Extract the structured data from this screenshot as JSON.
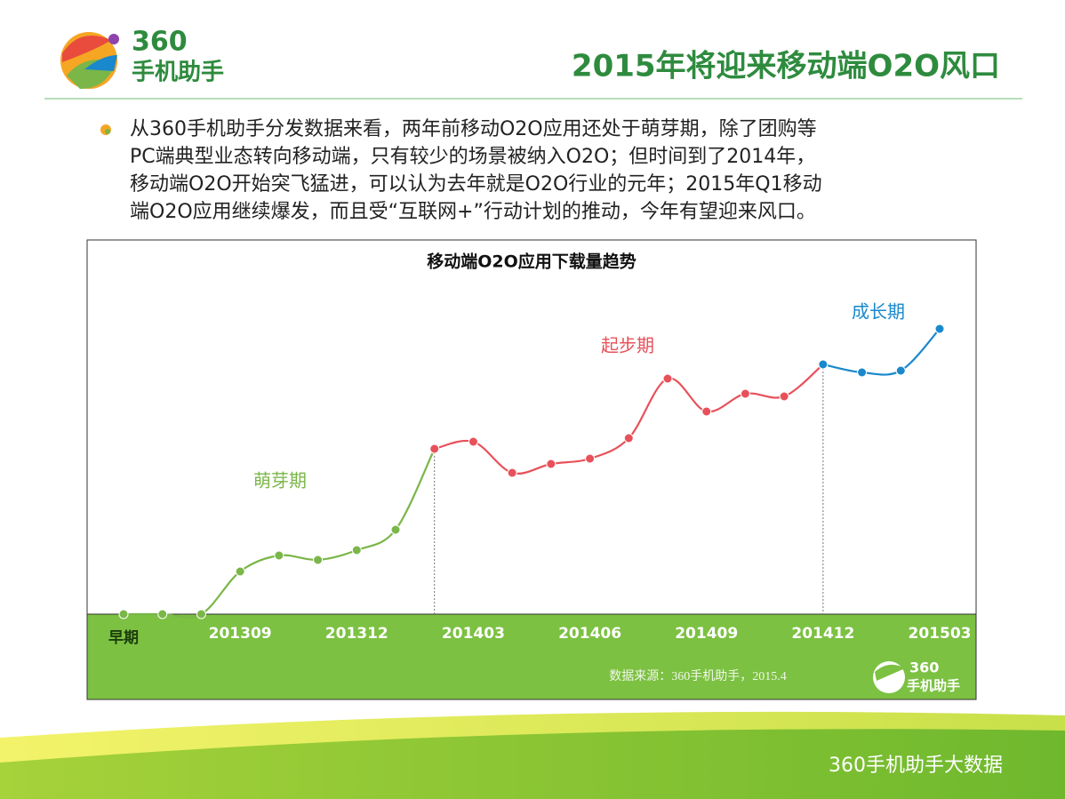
{
  "header": {
    "logo_number": "360",
    "logo_text": "手机助手",
    "title": "2015年将迎来移动端O2O风口"
  },
  "paragraph": [
    "从360手机助手分发数据来看，两年前移动O2O应用还处于萌芽期，除了团购等",
    "PC端典型业态转向移动端，只有较少的场景被纳入O2O；但时间到了2014年，",
    "移动端O2O开始突飞猛进，可以认为去年就是O2O行业的元年；2015年Q1移动",
    "端O2O应用继续爆发，而且受“互联网+”行动计划的推动，今年有望迎来风口。"
  ],
  "chart_data": {
    "type": "line",
    "title": "移动端O2O应用下载量趋势",
    "categories": [
      "早期",
      null,
      null,
      "201309",
      null,
      null,
      "201312",
      null,
      null,
      "201403",
      null,
      null,
      "201406",
      null,
      null,
      "201409",
      null,
      null,
      "201412",
      null,
      null,
      "201503"
    ],
    "series": [
      {
        "name": "萌芽期",
        "color": "#7ab648",
        "values": [
          0,
          0,
          0,
          48,
          66,
          61,
          72,
          95,
          186,
          null,
          null,
          null,
          null,
          null,
          null,
          null,
          null,
          null,
          null,
          null,
          null,
          null
        ]
      },
      {
        "name": "起步期",
        "color": "#e8515a",
        "values": [
          null,
          null,
          null,
          null,
          null,
          null,
          null,
          null,
          186,
          194,
          159,
          169,
          175,
          198,
          265,
          228,
          248,
          245,
          281,
          null,
          null,
          null
        ]
      },
      {
        "name": "成长期",
        "color": "#1a88cc",
        "values": [
          null,
          null,
          null,
          null,
          null,
          null,
          null,
          null,
          null,
          null,
          null,
          null,
          null,
          null,
          null,
          null,
          null,
          null,
          281,
          272,
          274,
          321
        ]
      }
    ],
    "ylim": [
      0,
      400
    ],
    "source": "数据来源：360手机助手，2015.4"
  },
  "footer": {
    "brand": "360手机助手大数据"
  }
}
